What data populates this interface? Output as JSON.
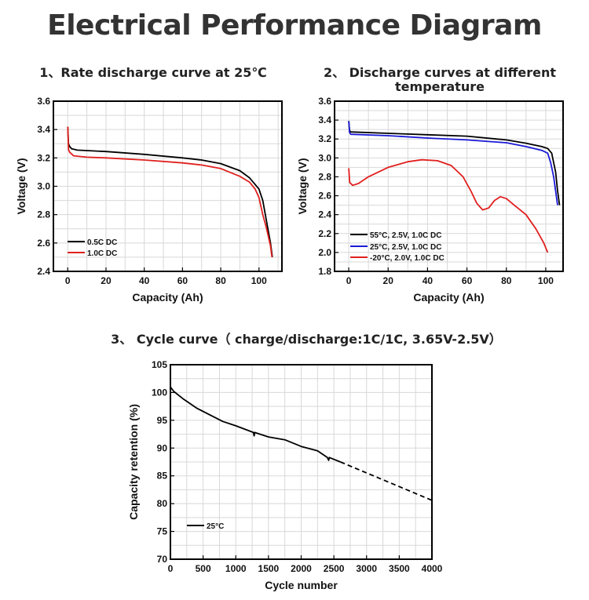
{
  "title": "Electrical Performance Diagram",
  "chart_data": [
    {
      "type": "line",
      "title": "1、Rate discharge curve at 25℃",
      "xlabel": "Capacity (Ah)",
      "ylabel": "Voltage (V)",
      "xlim": [
        -7.5,
        112
      ],
      "ylim": [
        2.4,
        3.6
      ],
      "xticks": [
        0,
        20,
        40,
        60,
        80,
        100
      ],
      "yticks": [
        2.4,
        2.6,
        2.8,
        3.0,
        3.2,
        3.4,
        3.6
      ],
      "ytick_labels": [
        "2.4",
        "2.6",
        "2.8",
        "3.0",
        "3.2",
        "3.4",
        "3.6"
      ],
      "grid": true,
      "legend_position": "bottom-left",
      "series": [
        {
          "name": "0.5C DC",
          "color": "#000000",
          "points": [
            [
              0,
              3.42
            ],
            [
              0.4,
              3.3
            ],
            [
              1,
              3.28
            ],
            [
              2,
              3.265
            ],
            [
              5,
              3.255
            ],
            [
              20,
              3.245
            ],
            [
              40,
              3.225
            ],
            [
              60,
              3.2
            ],
            [
              70,
              3.185
            ],
            [
              80,
              3.16
            ],
            [
              90,
              3.11
            ],
            [
              95,
              3.06
            ],
            [
              100,
              2.98
            ],
            [
              102,
              2.9
            ],
            [
              104,
              2.75
            ],
            [
              106,
              2.6
            ],
            [
              107,
              2.5
            ]
          ]
        },
        {
          "name": "1.0C DC",
          "color": "#e0201e",
          "points": [
            [
              0,
              3.42
            ],
            [
              0.4,
              3.26
            ],
            [
              1,
              3.24
            ],
            [
              3,
              3.215
            ],
            [
              10,
              3.205
            ],
            [
              20,
              3.2
            ],
            [
              40,
              3.185
            ],
            [
              60,
              3.165
            ],
            [
              70,
              3.15
            ],
            [
              80,
              3.125
            ],
            [
              90,
              3.07
            ],
            [
              95,
              3.03
            ],
            [
              98,
              2.98
            ],
            [
              100,
              2.92
            ],
            [
              102,
              2.8
            ],
            [
              104,
              2.7
            ],
            [
              106,
              2.58
            ],
            [
              106.8,
              2.5
            ]
          ]
        }
      ]
    },
    {
      "type": "line",
      "title": "2、 Discharge curves at different temperature",
      "xlabel": "Capacity (Ah)",
      "ylabel": "Voltage (V)",
      "xlim": [
        -7.2,
        108.8
      ],
      "ylim": [
        1.8,
        3.6
      ],
      "xticks": [
        0,
        20,
        40,
        60,
        80,
        100
      ],
      "yticks": [
        1.8,
        2.0,
        2.2,
        2.4,
        2.6,
        2.8,
        3.0,
        3.2,
        3.4,
        3.6
      ],
      "ytick_labels": [
        "1.8",
        "2.0",
        "2.2",
        "2.4",
        "2.6",
        "2.8",
        "3.0",
        "3.2",
        "3.4",
        "3.6"
      ],
      "grid": true,
      "legend_position": "bottom-left",
      "series": [
        {
          "name": "55°C, 2.5V, 1.0C DC",
          "color": "#000000",
          "points": [
            [
              0,
              3.39
            ],
            [
              0.4,
              3.29
            ],
            [
              1,
              3.275
            ],
            [
              20,
              3.26
            ],
            [
              40,
              3.245
            ],
            [
              60,
              3.23
            ],
            [
              80,
              3.19
            ],
            [
              90,
              3.155
            ],
            [
              98,
              3.12
            ],
            [
              101,
              3.1
            ],
            [
              103,
              3.05
            ],
            [
              105,
              2.85
            ],
            [
              106,
              2.65
            ],
            [
              107,
              2.5
            ]
          ]
        },
        {
          "name": "25°C, 2.5V, 1.0C DC",
          "color": "#1a1ad6",
          "points": [
            [
              0,
              3.39
            ],
            [
              0.4,
              3.27
            ],
            [
              1,
              3.25
            ],
            [
              20,
              3.235
            ],
            [
              40,
              3.21
            ],
            [
              60,
              3.19
            ],
            [
              80,
              3.16
            ],
            [
              90,
              3.12
            ],
            [
              98,
              3.08
            ],
            [
              101,
              3.05
            ],
            [
              102.5,
              2.95
            ],
            [
              104,
              2.8
            ],
            [
              105,
              2.65
            ],
            [
              106,
              2.5
            ]
          ]
        },
        {
          "name": "-20°C, 2.0V, 1.0C DC",
          "color": "#e0201e",
          "points": [
            [
              0,
              2.89
            ],
            [
              0.5,
              2.74
            ],
            [
              2,
              2.71
            ],
            [
              5,
              2.73
            ],
            [
              10,
              2.8
            ],
            [
              20,
              2.9
            ],
            [
              30,
              2.96
            ],
            [
              37,
              2.98
            ],
            [
              45,
              2.97
            ],
            [
              52,
              2.92
            ],
            [
              58,
              2.8
            ],
            [
              62,
              2.65
            ],
            [
              65,
              2.52
            ],
            [
              68,
              2.45
            ],
            [
              71,
              2.47
            ],
            [
              74,
              2.55
            ],
            [
              77,
              2.59
            ],
            [
              80,
              2.57
            ],
            [
              84,
              2.5
            ],
            [
              90,
              2.4
            ],
            [
              95,
              2.25
            ],
            [
              99,
              2.1
            ],
            [
              101,
              2.0
            ]
          ]
        }
      ]
    },
    {
      "type": "line",
      "title": "3、 Cycle curve（ charge/discharge:1C/1C, 3.65V-2.5V）",
      "xlabel": "Cycle number",
      "ylabel": "Capacity retention (%)",
      "xlim": [
        0,
        4000
      ],
      "ylim": [
        70,
        105
      ],
      "xticks": [
        0,
        500,
        1000,
        1500,
        2000,
        2500,
        3000,
        3500,
        4000
      ],
      "yticks": [
        70,
        75,
        80,
        85,
        90,
        95,
        100,
        105
      ],
      "ytick_labels": [
        "70",
        "75",
        "80",
        "85",
        "90",
        "95",
        "100",
        "105"
      ],
      "grid": true,
      "legend_position": "bottom-left",
      "series": [
        {
          "name": "25°C",
          "color": "#000000",
          "points": [
            [
              0,
              101
            ],
            [
              50,
              100.2
            ],
            [
              200,
              98.8
            ],
            [
              400,
              97.2
            ],
            [
              600,
              96
            ],
            [
              800,
              94.8
            ],
            [
              1000,
              94
            ],
            [
              1270,
              92.8
            ],
            [
              1280,
              92.2
            ],
            [
              1290,
              92.8
            ],
            [
              1500,
              92
            ],
            [
              1750,
              91.5
            ],
            [
              2000,
              90.3
            ],
            [
              2250,
              89.5
            ],
            [
              2400,
              88.3
            ],
            [
              2420,
              87.8
            ],
            [
              2430,
              88.3
            ],
            [
              2600,
              87.5
            ]
          ]
        },
        {
          "name": "projection",
          "color": "#000000",
          "dashed": true,
          "legend": false,
          "points": [
            [
              2600,
              87.5
            ],
            [
              4000,
              80.6
            ]
          ]
        }
      ]
    }
  ]
}
